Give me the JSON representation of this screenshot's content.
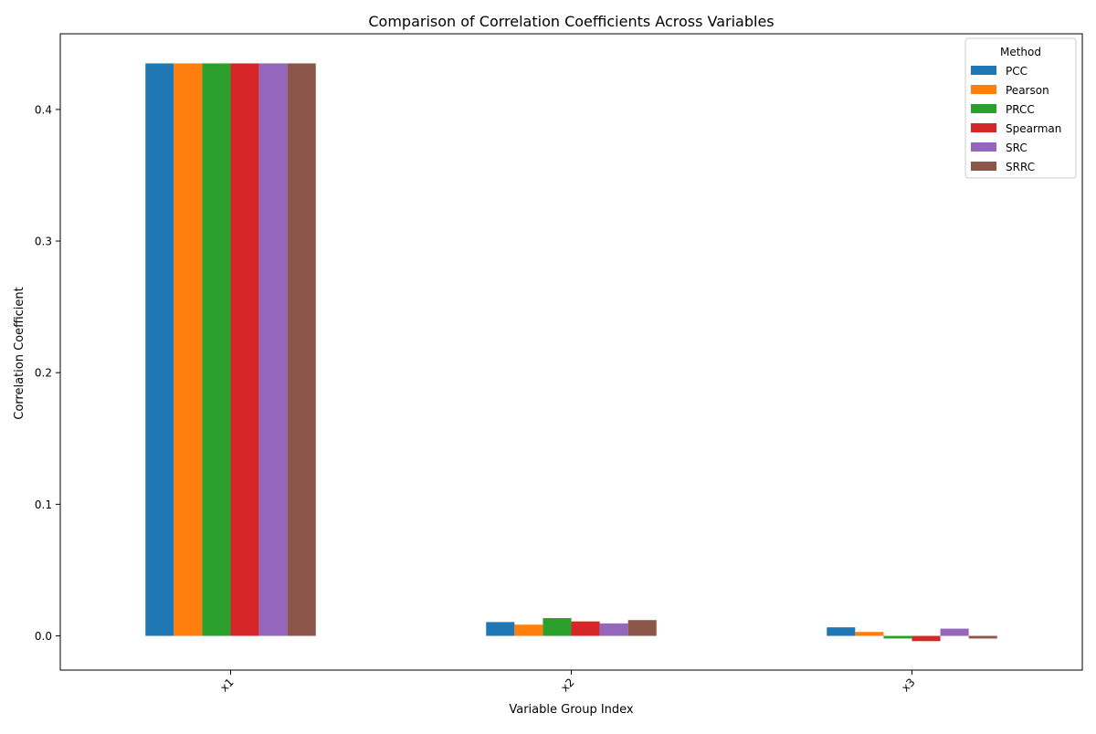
{
  "chart_data": {
    "type": "bar",
    "title": "Comparison of Correlation Coefficients Across Variables",
    "xlabel": "Variable Group Index",
    "ylabel": "Correlation Coefficient",
    "categories": [
      "x1",
      "x2",
      "x3"
    ],
    "ylim": [
      -0.026,
      0.4575
    ],
    "yticks": [
      0.0,
      0.1,
      0.2,
      0.3,
      0.4
    ],
    "ytick_labels": [
      "0.0",
      "0.1",
      "0.2",
      "0.3",
      "0.4"
    ],
    "grid": false,
    "legend": {
      "title": "Method",
      "placement": "top-right"
    },
    "series": [
      {
        "name": "PCC",
        "color": "#1f77b4",
        "values": [
          0.435,
          0.0105,
          0.0065
        ]
      },
      {
        "name": "Pearson",
        "color": "#ff7f0e",
        "values": [
          0.435,
          0.0085,
          0.003
        ]
      },
      {
        "name": "PRCC",
        "color": "#2ca02c",
        "values": [
          0.435,
          0.0135,
          -0.002
        ]
      },
      {
        "name": "Spearman",
        "color": "#d62728",
        "values": [
          0.435,
          0.011,
          -0.004
        ]
      },
      {
        "name": "SRC",
        "color": "#9467bd",
        "values": [
          0.435,
          0.0095,
          0.0055
        ]
      },
      {
        "name": "SRRC",
        "color": "#8c564b",
        "values": [
          0.435,
          0.012,
          -0.002
        ]
      }
    ]
  }
}
